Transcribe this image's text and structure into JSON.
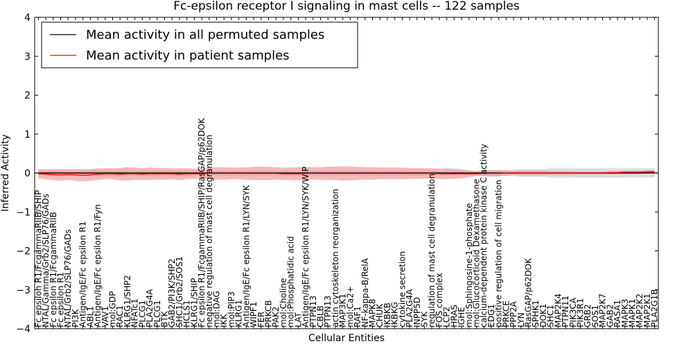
{
  "chart_data": {
    "type": "line",
    "title": "Fc-epsilon receptor I signaling in mast cells -- 122 samples",
    "xlabel": "Cellular Entities",
    "ylabel": "Inferred Activity",
    "ylim": [
      -4,
      4
    ],
    "yticks": [
      -4,
      -3,
      -2,
      -1,
      0,
      1,
      2,
      3,
      4
    ],
    "legend_position": "top-left",
    "categories": [
      "Fc epsilon R1/FcgammaRIIB/SHIP",
      "NTAL/Gamma/Grb2/SLP76/GADs",
      "Fc epsilon R1/FcgammaRIIB",
      "Fc epsilon R1",
      "NTAL/Grb2/SLP76/GADs",
      "PI3K",
      "Antigen/IgE/Fc epsilon R1",
      "ABL1",
      "Antigen/IgE/Fc epsilon R1/Fyn",
      "VAV1",
      "mol:GDP",
      "RAC1",
      "KLRG1/SHP2",
      "NFATc1",
      "PLCG1",
      "PLA2G4A",
      "PLCG1",
      "BTK",
      "GAB2/PI3K/SHP2",
      "SHC1/Grb2/SOS1",
      "HCLS1",
      "KLRG1/SHIP",
      "Fc epsilon R1/FcgammaRIIB/SHIP/RasGAP/p62DOK",
      "negative regulation of mast cell degranulation",
      "mol:DAG",
      "IKK",
      "mol:PIP3",
      "KLRG1",
      "Antigen/IgE/Fc epsilon R1/LYN/SYK",
      "WIPF1",
      "FER",
      "PRKCB",
      "PAK2",
      "mol:Choline",
      "mol:Phosphatidic acid",
      "LAT",
      "Antigen/IgE/Fc epsilon R1/LYN/SYK/WIP",
      "PTPN13",
      "CBLB",
      "PTPN13",
      "actin cytoskeleton reorganization",
      "MAP3K1",
      "mol:Ca2+",
      "RAF1",
      "NF-kappa-B/RelA",
      "MAPK8",
      "CHUK",
      "IKBKB",
      "IKBKG",
      "cytokine secretion",
      "PLA2G4A",
      "INPP5D",
      "SYK",
      "regulation of mast cell degranulation",
      "FOS complex",
      "LCP2",
      "HRAS",
      "IGHE",
      "mol:Sphingosine-1-phosphate",
      "mol:Glucocorticoid Dexamethasone",
      "calcium-dependent protein kinase C activity",
      "EDG1",
      "positive regulation of cell migration",
      "PRKCE",
      "PPP2A",
      "LYN",
      "RasGAP/p62DOK",
      "SPHK1",
      "DOK1",
      "SHC1",
      "MAP2K4",
      "PTPN11",
      "PIK3CA",
      "PIK3R1",
      "GRB2",
      "SOS1",
      "MAP2K7",
      "GAB2",
      "RASA1",
      "MAPK3",
      "MAPK1",
      "MAP2K2",
      "MAP2K1",
      "PLA2G1B"
    ],
    "series": [
      {
        "name": "Mean activity in all permuted samples",
        "color": "#000000",
        "values": [
          0,
          0,
          0,
          0,
          0,
          0,
          0,
          0,
          0,
          0,
          0,
          0,
          0,
          0,
          0,
          0,
          0,
          0,
          0,
          0,
          0,
          0,
          0,
          0,
          0,
          0,
          0,
          0,
          0,
          0,
          0,
          0,
          0,
          0,
          0,
          0,
          0,
          0,
          0,
          0,
          0,
          0,
          0,
          0,
          0,
          0,
          0,
          0,
          0,
          0,
          0,
          0,
          0,
          0,
          0,
          0,
          0,
          0,
          0,
          0,
          0,
          0,
          0,
          0,
          0,
          0,
          0,
          0,
          0,
          0,
          0,
          0,
          0,
          0,
          0,
          0,
          0,
          0,
          0,
          0,
          0,
          0,
          0,
          0
        ],
        "band": [
          0.06,
          0.06,
          0.06,
          0.06,
          0.06,
          0.06,
          0.06,
          0.06,
          0.06,
          0.06,
          0.06,
          0.06,
          0.06,
          0.06,
          0.06,
          0.06,
          0.06,
          0.06,
          0.06,
          0.06,
          0.06,
          0.06,
          0.06,
          0.06,
          0.06,
          0.06,
          0.06,
          0.06,
          0.06,
          0.06,
          0.06,
          0.06,
          0.06,
          0.06,
          0.06,
          0.06,
          0.06,
          0.06,
          0.06,
          0.06,
          0.06,
          0.06,
          0.06,
          0.06,
          0.06,
          0.06,
          0.06,
          0.06,
          0.06,
          0.06,
          0.06,
          0.06,
          0.06,
          0.06,
          0.06,
          0.06,
          0.06,
          0.06,
          0.06,
          0.06,
          0.08,
          0.08,
          0.08,
          0.08,
          0.08,
          0.1,
          0.1,
          0.1,
          0.1,
          0.12,
          0.12,
          0.12,
          0.12,
          0.12,
          0.12,
          0.12,
          0.12,
          0.12,
          0.12,
          0.12,
          0.12,
          0.12,
          0.12,
          0.12
        ]
      },
      {
        "name": "Mean activity in patient samples",
        "color": "#ff0000",
        "values": [
          -0.02,
          -0.03,
          -0.04,
          -0.05,
          -0.04,
          -0.05,
          -0.06,
          -0.05,
          -0.03,
          -0.02,
          -0.02,
          -0.03,
          -0.02,
          -0.02,
          -0.03,
          -0.02,
          -0.02,
          -0.02,
          -0.02,
          -0.03,
          -0.02,
          -0.02,
          -0.02,
          -0.01,
          -0.01,
          -0.01,
          -0.01,
          -0.01,
          -0.01,
          -0.01,
          -0.01,
          -0.01,
          -0.01,
          -0.02,
          -0.02,
          -0.02,
          -0.01,
          -0.01,
          -0.01,
          -0.01,
          -0.01,
          -0.01,
          -0.01,
          -0.01,
          -0.01,
          -0.01,
          -0.01,
          -0.01,
          -0.01,
          -0.01,
          -0.01,
          -0.01,
          -0.01,
          -0.01,
          -0.02,
          -0.02,
          -0.02,
          -0.02,
          -0.02,
          -0.02,
          -0.01,
          -0.01,
          -0.01,
          0,
          0,
          0,
          0,
          0,
          0,
          0,
          0,
          0,
          0,
          0,
          0,
          0,
          0,
          0.01,
          0.01,
          0.02,
          0.02,
          0.02,
          0.03,
          0.03
        ],
        "band": [
          0.12,
          0.13,
          0.14,
          0.15,
          0.14,
          0.15,
          0.16,
          0.15,
          0.15,
          0.14,
          0.14,
          0.16,
          0.17,
          0.16,
          0.15,
          0.16,
          0.15,
          0.15,
          0.14,
          0.15,
          0.14,
          0.13,
          0.13,
          0.15,
          0.16,
          0.16,
          0.15,
          0.15,
          0.16,
          0.17,
          0.17,
          0.17,
          0.16,
          0.16,
          0.16,
          0.17,
          0.17,
          0.16,
          0.16,
          0.17,
          0.17,
          0.18,
          0.18,
          0.17,
          0.16,
          0.16,
          0.15,
          0.15,
          0.15,
          0.15,
          0.14,
          0.14,
          0.14,
          0.13,
          0.13,
          0.14,
          0.13,
          0.12,
          0.09,
          0.06,
          0.07,
          0.08,
          0.08,
          0.06,
          0.05,
          0.06,
          0.06,
          0.06,
          0.06,
          0.05,
          0.05,
          0.05,
          0.05,
          0.04,
          0.04,
          0.04,
          0.04,
          0.04,
          0.04,
          0.04,
          0.04,
          0.04,
          0.04,
          0.04
        ]
      }
    ]
  }
}
